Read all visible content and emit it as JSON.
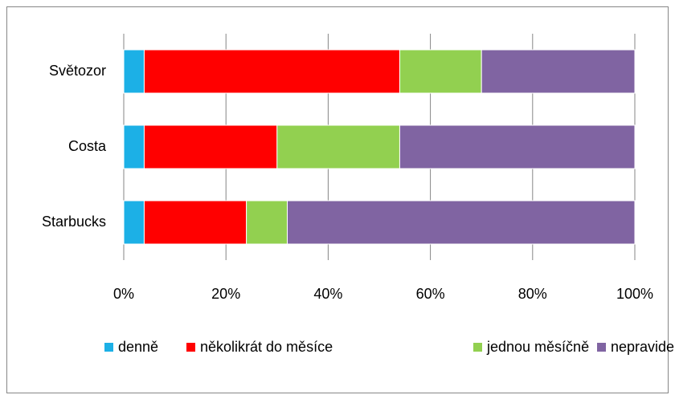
{
  "chart_data": {
    "type": "bar",
    "orientation": "horizontal",
    "stacked": true,
    "categories": [
      "Světozor",
      "Costa",
      "Starbucks"
    ],
    "series": [
      {
        "name": "denně",
        "color": "#1cb0e6",
        "values": [
          4,
          4,
          4
        ]
      },
      {
        "name": "několikrát do měsíce",
        "color": "#ff0000",
        "values": [
          50,
          26,
          20
        ]
      },
      {
        "name": "jednou měsíčně",
        "color": "#92d050",
        "values": [
          16,
          24,
          8
        ]
      },
      {
        "name": "nepravidelně",
        "color": "#8064a2",
        "values": [
          30,
          46,
          68
        ]
      }
    ],
    "xlim": [
      0,
      100
    ],
    "xticks": [
      {
        "value": 0,
        "label": "0%"
      },
      {
        "value": 20,
        "label": "20%"
      },
      {
        "value": 40,
        "label": "40%"
      },
      {
        "value": 60,
        "label": "60%"
      },
      {
        "value": 80,
        "label": "80%"
      },
      {
        "value": 100,
        "label": "100%"
      }
    ],
    "grid": true,
    "legend": "bottom"
  }
}
